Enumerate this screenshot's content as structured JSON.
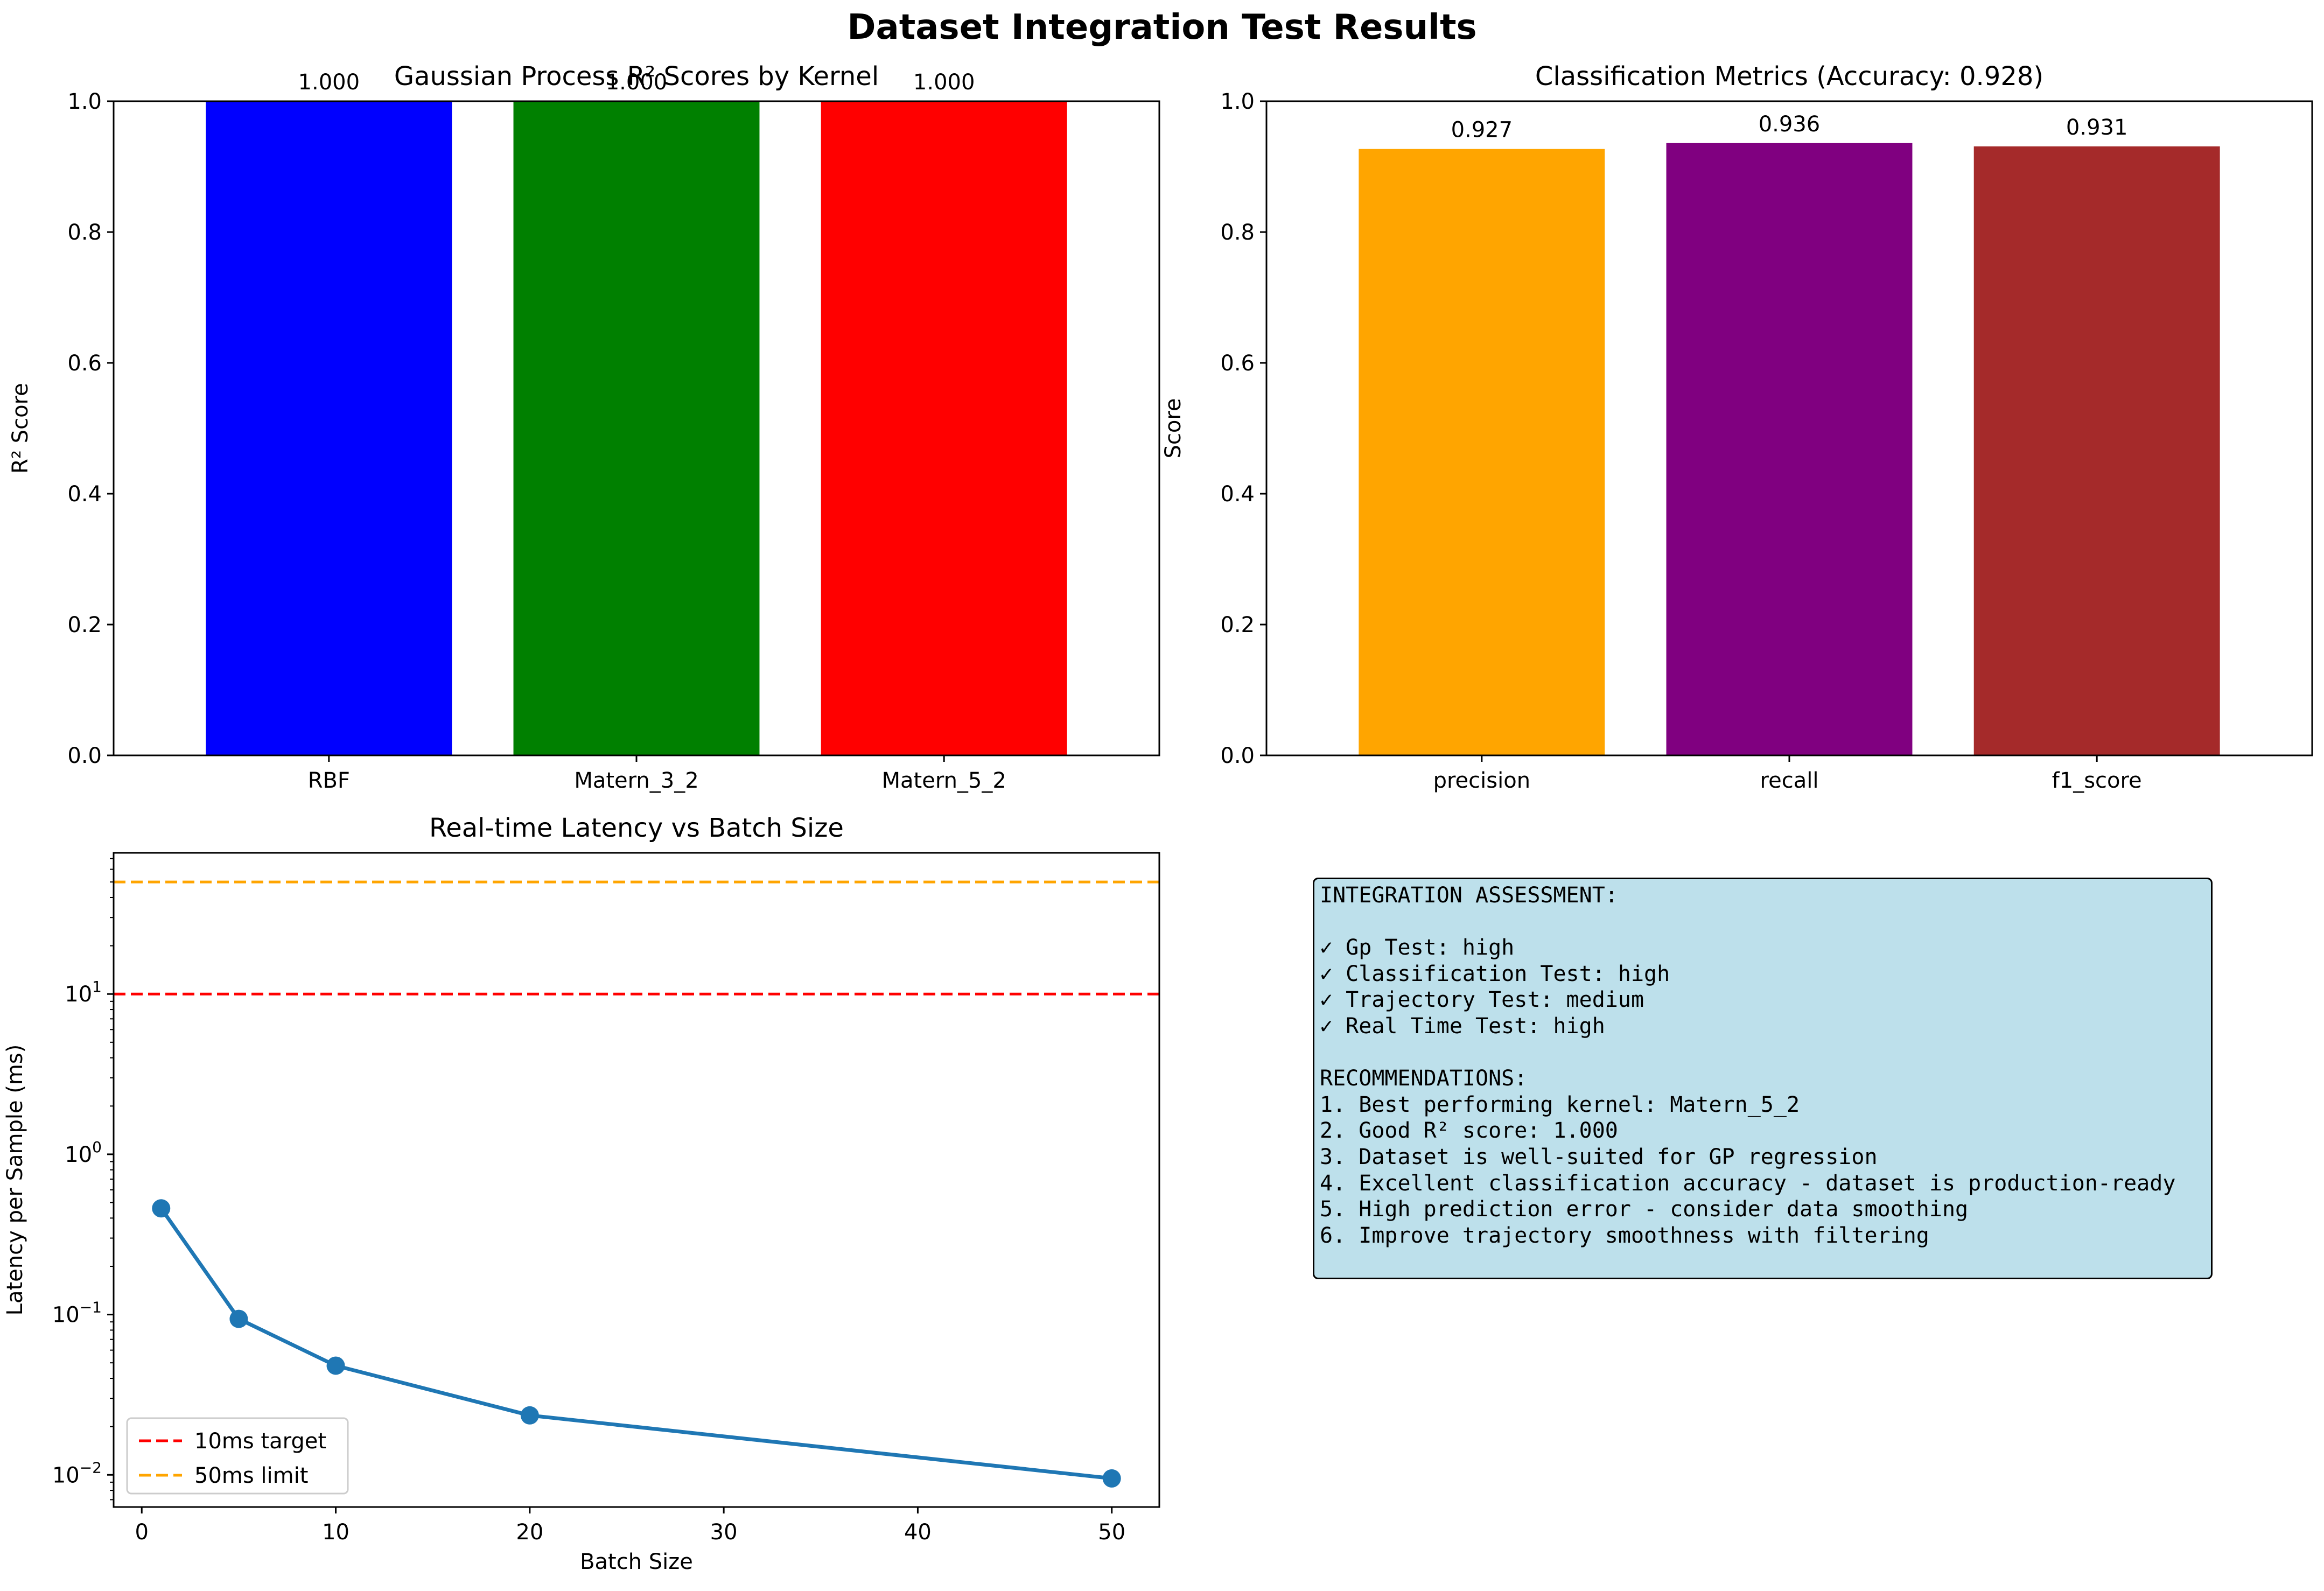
{
  "figure": {
    "title": "Dataset Integration Test Results"
  },
  "chart_data": [
    {
      "type": "bar",
      "title": "Gaussian Process R² Scores by Kernel",
      "xlabel": "",
      "ylabel": "R² Score",
      "categories": [
        "RBF",
        "Matern_3_2",
        "Matern_5_2"
      ],
      "values": [
        1.0,
        1.0,
        1.0
      ],
      "value_labels": [
        "1.000",
        "1.000",
        "1.000"
      ],
      "colors": [
        "#0000ff",
        "#008000",
        "#ff0000"
      ],
      "ylim": [
        0,
        1
      ],
      "yticks": [
        "0.0",
        "0.2",
        "0.4",
        "0.6",
        "0.8",
        "1.0"
      ],
      "grid": false
    },
    {
      "type": "bar",
      "title": "Classification Metrics (Accuracy: 0.928)",
      "xlabel": "",
      "ylabel": "Score",
      "categories": [
        "precision",
        "recall",
        "f1_score"
      ],
      "values": [
        0.927,
        0.936,
        0.931
      ],
      "value_labels": [
        "0.927",
        "0.936",
        "0.931"
      ],
      "colors": [
        "#ffa500",
        "#800080",
        "#a52a2a"
      ],
      "ylim": [
        0,
        1
      ],
      "yticks": [
        "0.0",
        "0.2",
        "0.4",
        "0.6",
        "0.8",
        "1.0"
      ],
      "grid": false
    },
    {
      "type": "line",
      "title": "Real-time Latency vs Batch Size",
      "xlabel": "Batch Size",
      "ylabel": "Latency per Sample (ms)",
      "yscale": "log",
      "x": [
        1,
        5,
        10,
        20,
        50
      ],
      "y": [
        0.46,
        0.094,
        0.048,
        0.0235,
        0.0095
      ],
      "line_color": "#1f77b4",
      "xlim": [
        -1.45,
        52.45
      ],
      "ylim": [
        0.0063,
        76
      ],
      "xticks": [
        0,
        10,
        20,
        30,
        40,
        50
      ],
      "yticks": [
        {
          "value": 0.01,
          "base": "10",
          "exp": "−2"
        },
        {
          "value": 0.1,
          "base": "10",
          "exp": "−1"
        },
        {
          "value": 1,
          "base": "10",
          "exp": "0"
        },
        {
          "value": 10,
          "base": "10",
          "exp": "1"
        }
      ],
      "reference_lines": [
        {
          "y": 10,
          "label": "10ms target",
          "color": "#ff0000"
        },
        {
          "y": 50,
          "label": "50ms limit",
          "color": "#ffa500"
        }
      ],
      "legend": "lower-left",
      "grid": false
    }
  ],
  "assessment": {
    "lines": [
      "INTEGRATION ASSESSMENT:",
      "",
      "✓ Gp Test: high",
      "✓ Classification Test: high",
      "✓ Trajectory Test: medium",
      "✓ Real Time Test: high",
      "",
      "RECOMMENDATIONS:",
      "1. Best performing kernel: Matern_5_2",
      "2. Good R² score: 1.000",
      "3. Dataset is well-suited for GP regression",
      "4. Excellent classification accuracy - dataset is production-ready",
      "5. High prediction error - consider data smoothing",
      "6. Improve trajectory smoothness with filtering"
    ]
  }
}
